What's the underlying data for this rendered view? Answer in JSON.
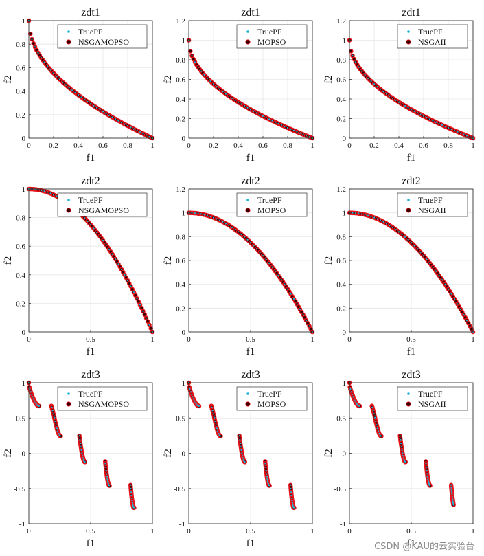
{
  "colors": {
    "true_pf": "#1fb4d6",
    "marker_fill": "#3a0000",
    "marker_edge": "#e8141a",
    "grid": "#e6e6e6",
    "axis": "#333333"
  },
  "icons": {
    "true_pf_marker": "dot-icon",
    "algorithm_marker": "circle-icon"
  },
  "watermark": "CSDN @KAU的云实验台",
  "chart_data": [
    {
      "type": "scatter",
      "title": "zdt1",
      "xlabel": "f1",
      "ylabel": "f2",
      "problem": "zdt1",
      "xlim": [
        0,
        1
      ],
      "ylim": [
        0,
        1
      ],
      "xticks": [
        "0",
        "0.2",
        "0.4",
        "0.6",
        "0.8",
        "1"
      ],
      "yticks": [
        "0",
        "0.2",
        "0.4",
        "0.6",
        "0.8",
        "1"
      ],
      "legend": [
        "TruePF",
        "NSGAMOPSO"
      ],
      "legend_position": "top-right",
      "grid": true,
      "series": [
        {
          "name": "TruePF",
          "function": "1 - sqrt(f1)",
          "x_range": [
            0,
            1
          ]
        },
        {
          "name": "NSGAMOPSO",
          "function": "1 - sqrt(f1)",
          "x_range": [
            0,
            1
          ]
        }
      ]
    },
    {
      "type": "scatter",
      "title": "zdt1",
      "xlabel": "f1",
      "ylabel": "f2",
      "problem": "zdt1",
      "xlim": [
        0,
        1
      ],
      "ylim": [
        0,
        1.2
      ],
      "xticks": [
        "0",
        "0.2",
        "0.4",
        "0.6",
        "0.8",
        "1"
      ],
      "yticks": [
        "0",
        "0.2",
        "0.4",
        "0.6",
        "0.8",
        "1",
        "1.2"
      ],
      "legend": [
        "TruePF",
        "MOPSO"
      ],
      "legend_position": "top-right",
      "grid": true,
      "series": [
        {
          "name": "TruePF",
          "function": "1 - sqrt(f1)",
          "x_range": [
            0,
            1
          ]
        },
        {
          "name": "MOPSO",
          "function": "1 - sqrt(f1)",
          "x_range": [
            0,
            1
          ]
        }
      ]
    },
    {
      "type": "scatter",
      "title": "zdt1",
      "xlabel": "f1",
      "ylabel": "f2",
      "problem": "zdt1",
      "xlim": [
        0,
        1
      ],
      "ylim": [
        0,
        1.2
      ],
      "xticks": [
        "0",
        "0.2",
        "0.4",
        "0.6",
        "0.8",
        "1"
      ],
      "yticks": [
        "0",
        "0.2",
        "0.4",
        "0.6",
        "0.8",
        "1",
        "1.2"
      ],
      "legend": [
        "TruePF",
        "NSGAII"
      ],
      "legend_position": "top-right",
      "grid": true,
      "series": [
        {
          "name": "TruePF",
          "function": "1 - sqrt(f1)",
          "x_range": [
            0,
            1
          ]
        },
        {
          "name": "NSGAII",
          "function": "1 - sqrt(f1)",
          "x_range": [
            0,
            1
          ]
        }
      ]
    },
    {
      "type": "scatter",
      "title": "zdt2",
      "xlabel": "f1",
      "ylabel": "f2",
      "problem": "zdt2",
      "xlim": [
        0,
        1
      ],
      "ylim": [
        0,
        1
      ],
      "xticks": [
        "0",
        "0.5",
        "1"
      ],
      "yticks": [
        "0",
        "0.2",
        "0.4",
        "0.6",
        "0.8",
        "1"
      ],
      "legend": [
        "TruePF",
        "NSGAMOPSO"
      ],
      "legend_position": "top-right",
      "grid": true,
      "series": [
        {
          "name": "TruePF",
          "function": "1 - f1^2",
          "x_range": [
            0,
            1
          ]
        },
        {
          "name": "NSGAMOPSO",
          "function": "1 - f1^2",
          "x_range": [
            0,
            1
          ]
        }
      ]
    },
    {
      "type": "scatter",
      "title": "zdt2",
      "xlabel": "f1",
      "ylabel": "f2",
      "problem": "zdt2",
      "xlim": [
        0,
        1
      ],
      "ylim": [
        0,
        1.2
      ],
      "xticks": [
        "0",
        "0.5",
        "1"
      ],
      "yticks": [
        "0",
        "0.2",
        "0.4",
        "0.6",
        "0.8",
        "1",
        "1.2"
      ],
      "legend": [
        "TruePF",
        "MOPSO"
      ],
      "legend_position": "top-right",
      "grid": true,
      "series": [
        {
          "name": "TruePF",
          "function": "1 - f1^2",
          "x_range": [
            0,
            1
          ]
        },
        {
          "name": "MOPSO",
          "function": "1 - f1^2",
          "x_range": [
            0,
            1
          ]
        }
      ]
    },
    {
      "type": "scatter",
      "title": "zdt2",
      "xlabel": "f1",
      "ylabel": "f2",
      "problem": "zdt2",
      "xlim": [
        0,
        1
      ],
      "ylim": [
        0,
        1.2
      ],
      "xticks": [
        "0",
        "0.5",
        "1"
      ],
      "yticks": [
        "0",
        "0.2",
        "0.4",
        "0.6",
        "0.8",
        "1",
        "1.2"
      ],
      "legend": [
        "TruePF",
        "NSGAII"
      ],
      "legend_position": "top-right",
      "grid": true,
      "series": [
        {
          "name": "TruePF",
          "function": "1 - f1^2",
          "x_range": [
            0,
            1
          ]
        },
        {
          "name": "NSGAII",
          "function": "1 - f1^2",
          "x_range": [
            0,
            1
          ]
        }
      ]
    },
    {
      "type": "scatter",
      "title": "zdt3",
      "xlabel": "f1",
      "ylabel": "f2",
      "problem": "zdt3",
      "xlim": [
        0,
        1
      ],
      "ylim": [
        -1,
        1
      ],
      "xticks": [
        "0",
        "0.5",
        "1"
      ],
      "yticks": [
        "-1",
        "-0.5",
        "0",
        "0.5",
        "1"
      ],
      "legend": [
        "TruePF",
        "NSGAMOPSO"
      ],
      "legend_position": "top-right",
      "grid": true,
      "segments": [
        [
          0,
          0.083
        ],
        [
          0.182,
          0.258
        ],
        [
          0.409,
          0.454
        ],
        [
          0.618,
          0.653
        ],
        [
          0.823,
          0.852
        ]
      ],
      "series": [
        {
          "name": "TruePF",
          "function": "1 - sqrt(f1) - f1*sin(10*pi*f1)"
        },
        {
          "name": "NSGAMOPSO",
          "function": "1 - sqrt(f1) - f1*sin(10*pi*f1)"
        }
      ]
    },
    {
      "type": "scatter",
      "title": "zdt3",
      "xlabel": "f1",
      "ylabel": "f2",
      "problem": "zdt3",
      "xlim": [
        0,
        1
      ],
      "ylim": [
        -1,
        1
      ],
      "xticks": [
        "0",
        "0.5",
        "1"
      ],
      "yticks": [
        "-1",
        "-0.5",
        "0",
        "0.5",
        "1"
      ],
      "legend": [
        "TruePF",
        "MOPSO"
      ],
      "legend_position": "top-right",
      "grid": true,
      "segments": [
        [
          0,
          0.083
        ],
        [
          0.182,
          0.258
        ],
        [
          0.409,
          0.454
        ],
        [
          0.618,
          0.653
        ],
        [
          0.823,
          0.852
        ]
      ],
      "series": [
        {
          "name": "TruePF",
          "function": "1 - sqrt(f1) - f1*sin(10*pi*f1)"
        },
        {
          "name": "MOPSO",
          "function": "1 - sqrt(f1) - f1*sin(10*pi*f1)"
        }
      ]
    },
    {
      "type": "scatter",
      "title": "zdt3",
      "xlabel": "f1",
      "ylabel": "f2",
      "problem": "zdt3",
      "xlim": [
        0,
        1
      ],
      "ylim": [
        -1,
        1
      ],
      "xticks": [
        "0",
        "0.5",
        "1"
      ],
      "yticks": [
        "-1",
        "-0.5",
        "0",
        "0.5",
        "1"
      ],
      "legend": [
        "TruePF",
        "NSGAII"
      ],
      "legend_position": "top-right",
      "grid": true,
      "segments": [
        [
          0,
          0.083
        ],
        [
          0.182,
          0.258
        ],
        [
          0.409,
          0.454
        ],
        [
          0.618,
          0.653
        ],
        [
          0.823,
          0.842
        ]
      ],
      "series": [
        {
          "name": "TruePF",
          "function": "1 - sqrt(f1) - f1*sin(10*pi*f1)"
        },
        {
          "name": "NSGAII",
          "function": "1 - sqrt(f1) - f1*sin(10*pi*f1)"
        }
      ]
    }
  ]
}
